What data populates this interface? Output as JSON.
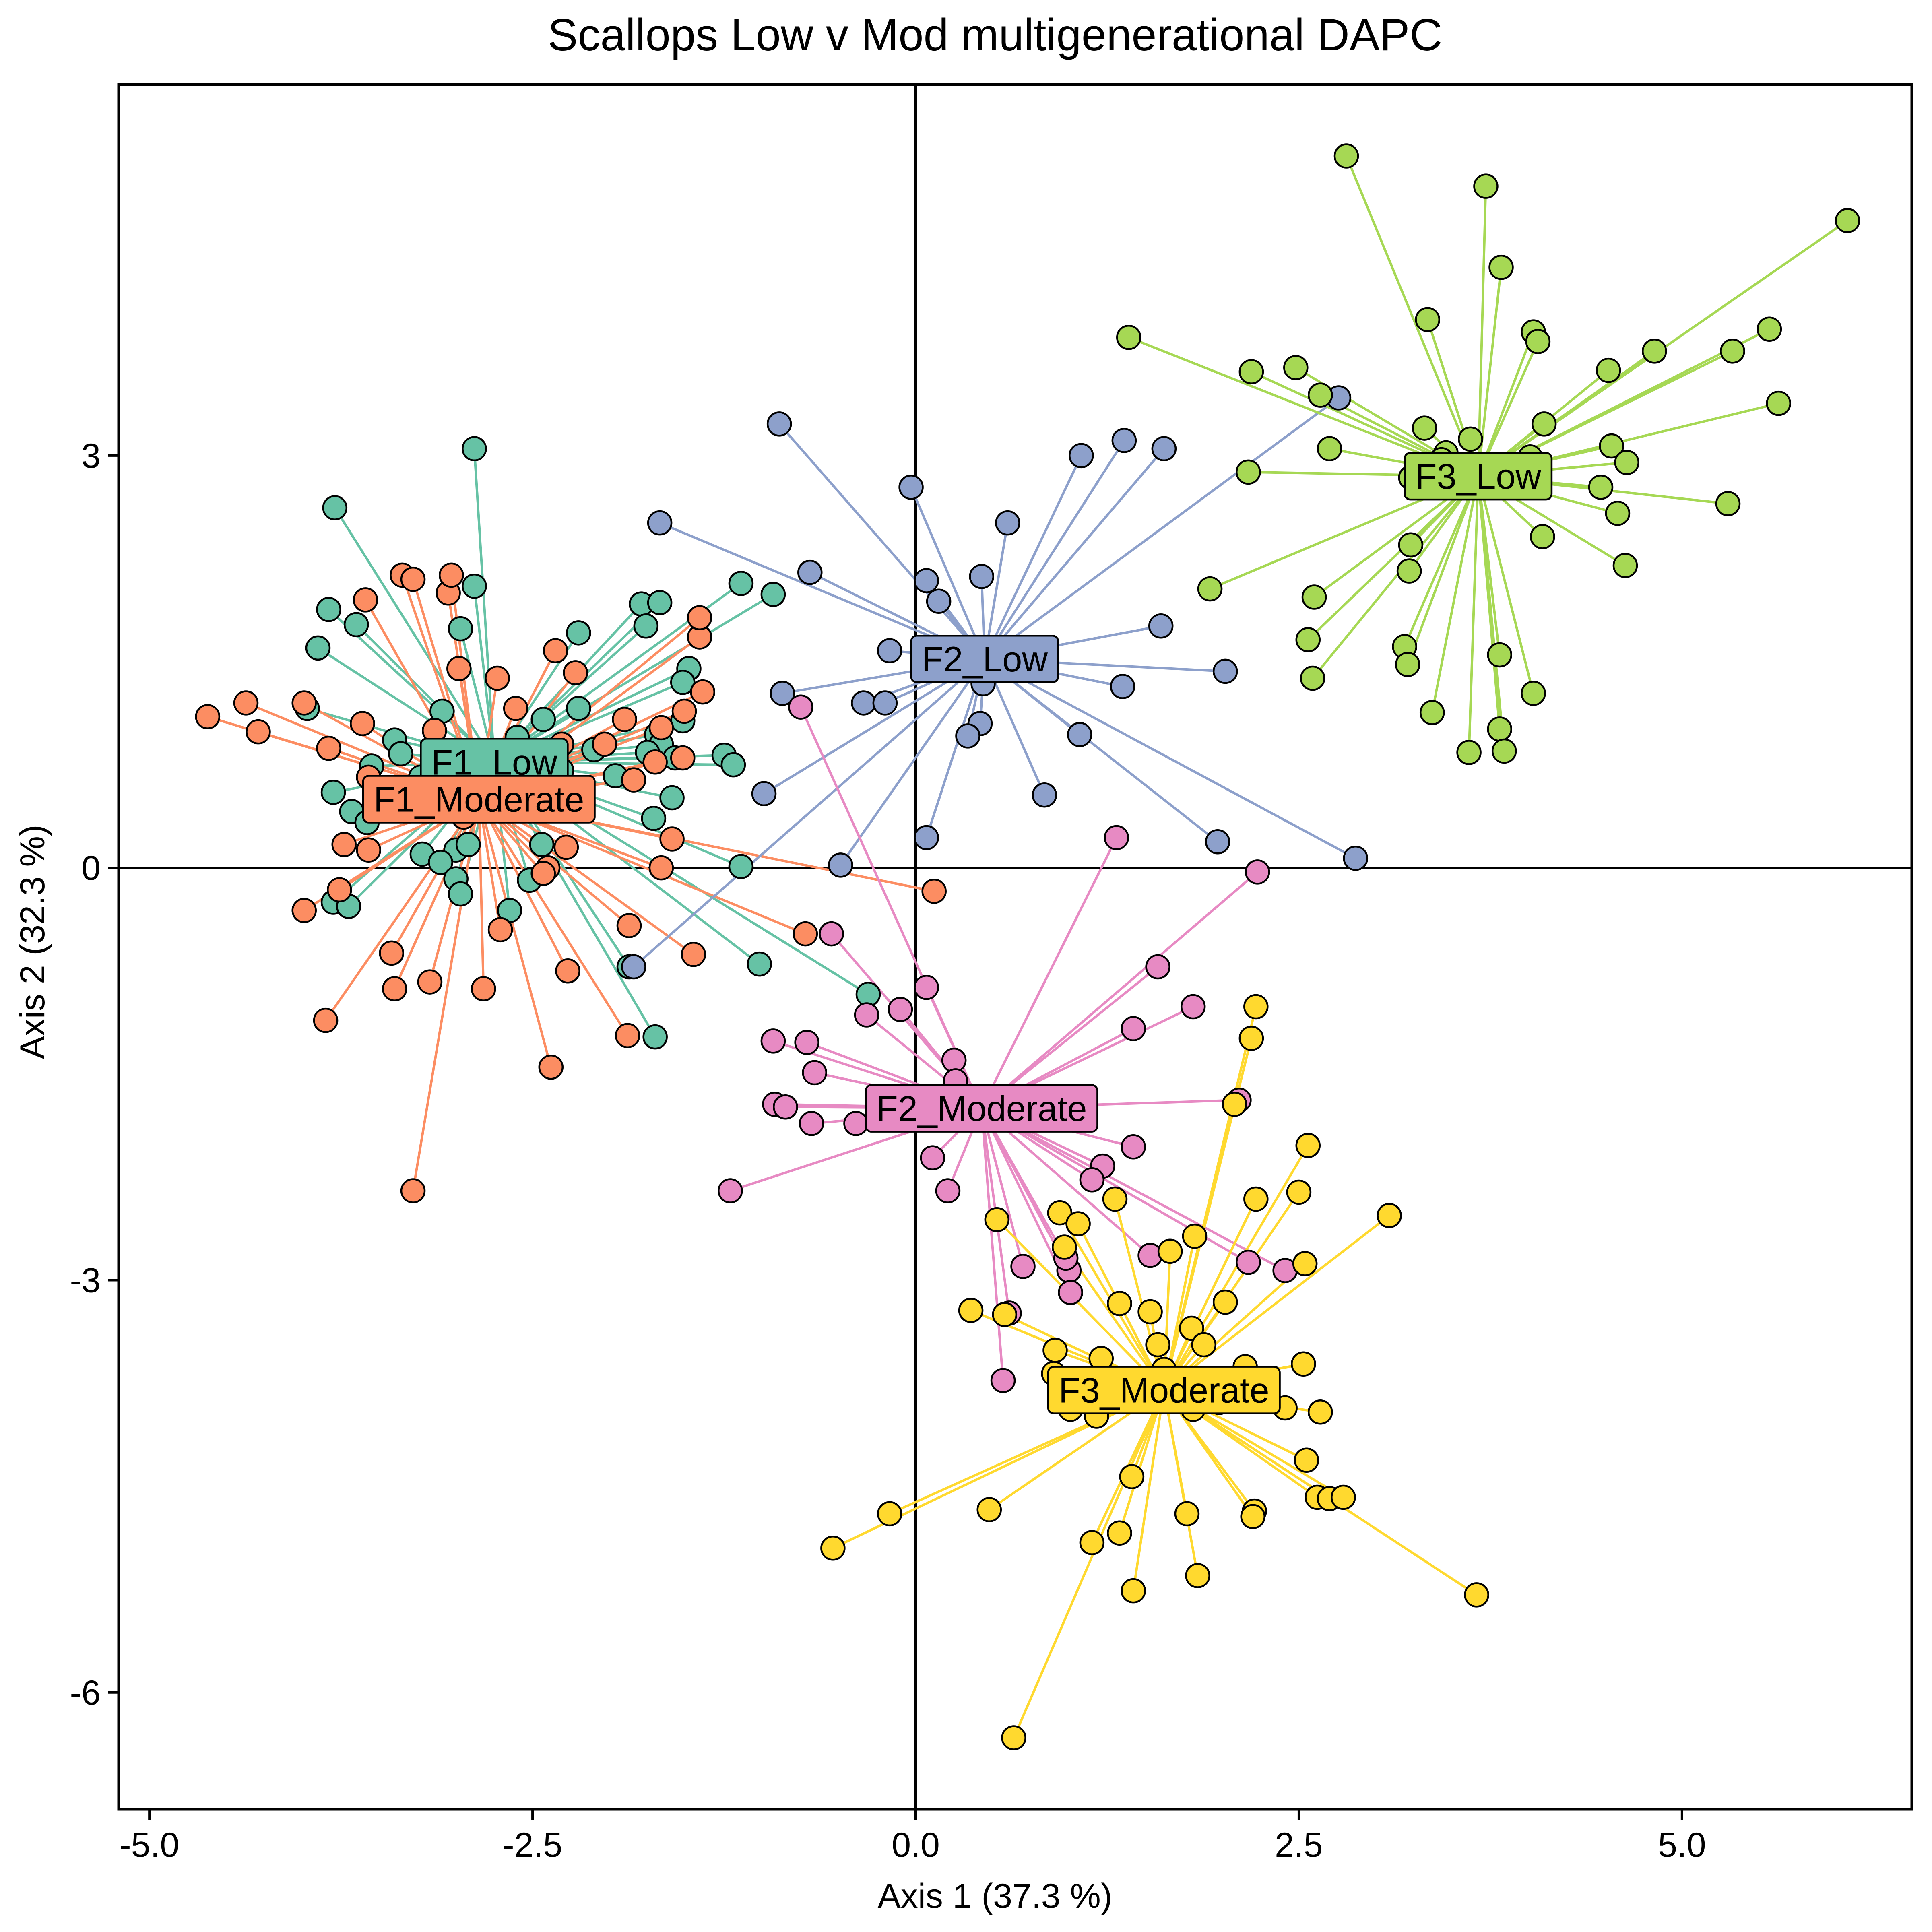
{
  "chart_data": {
    "type": "scatter",
    "title": "Scallops Low v Mod multigenerational DAPC",
    "xlabel": "Axis 1 (37.3 %)",
    "ylabel": "Axis 2 (32.3 %)",
    "xlim": [
      -5.2,
      6.5
    ],
    "ylim": [
      -6.85,
      5.7
    ],
    "x_ticks": [
      -5.0,
      -2.5,
      0.0,
      2.5,
      5.0
    ],
    "x_tick_labels": [
      "-5.0",
      "-2.5",
      "0.0",
      "2.5",
      "5.0"
    ],
    "y_ticks": [
      3,
      0,
      -3,
      -6
    ],
    "y_tick_labels": [
      "3",
      "0",
      "-3",
      "-6"
    ],
    "reference_lines": {
      "x": 0,
      "y": 0
    },
    "grid": false,
    "legend": "none (centroid labels)",
    "series": [
      {
        "name": "F1_Low",
        "color": "#66c2a5",
        "centroid": [
          -2.75,
          0.77
        ],
        "points": [
          [
            -2.88,
            3.05
          ],
          [
            -3.79,
            2.62
          ],
          [
            -3.83,
            1.88
          ],
          [
            -3.9,
            1.6
          ],
          [
            -3.65,
            1.77
          ],
          [
            -2.97,
            1.74
          ],
          [
            -2.88,
            2.05
          ],
          [
            -2.2,
            1.71
          ],
          [
            -1.79,
            1.92
          ],
          [
            -1.67,
            1.93
          ],
          [
            -1.76,
            1.76
          ],
          [
            -1.14,
            2.07
          ],
          [
            -0.93,
            1.99
          ],
          [
            -1.48,
            1.45
          ],
          [
            -1.52,
            1.35
          ],
          [
            -1.52,
            1.07
          ],
          [
            -1.69,
            0.97
          ],
          [
            -1.66,
            0.9
          ],
          [
            -1.75,
            0.84
          ],
          [
            -1.57,
            0.8
          ],
          [
            -1.25,
            0.82
          ],
          [
            -1.19,
            0.75
          ],
          [
            -1.14,
            0.01
          ],
          [
            -1.02,
            -0.7
          ],
          [
            -0.31,
            -0.92
          ],
          [
            -1.7,
            -1.23
          ],
          [
            -1.87,
            -0.72
          ],
          [
            -1.71,
            0.36
          ],
          [
            -1.59,
            0.51
          ],
          [
            -2.2,
            1.16
          ],
          [
            -2.43,
            1.08
          ],
          [
            -2.6,
            0.95
          ],
          [
            -3.09,
            1.14
          ],
          [
            -3.4,
            0.93
          ],
          [
            -3.36,
            0.83
          ],
          [
            -3.55,
            0.74
          ],
          [
            -3.23,
            0.66
          ],
          [
            -3.97,
            1.16
          ],
          [
            -3.8,
            0.55
          ],
          [
            -3.68,
            0.41
          ],
          [
            -3.58,
            0.33
          ],
          [
            -3.22,
            0.1
          ],
          [
            -3.0,
            0.13
          ],
          [
            -3.1,
            0.04
          ],
          [
            -3.0,
            -0.08
          ],
          [
            -2.92,
            0.17
          ],
          [
            -2.97,
            -0.19
          ],
          [
            -2.65,
            -0.31
          ],
          [
            -2.52,
            -0.09
          ],
          [
            -2.44,
            0.17
          ],
          [
            -3.8,
            -0.25
          ],
          [
            -3.7,
            -0.28
          ],
          [
            -1.96,
            0.67
          ],
          [
            -2.31,
            0.71
          ],
          [
            -2.1,
            0.86
          ]
        ]
      },
      {
        "name": "F1_Moderate",
        "color": "#fc8d62",
        "centroid": [
          -2.85,
          0.5
        ],
        "points": [
          [
            -4.62,
            1.1
          ],
          [
            -4.37,
            1.2
          ],
          [
            -4.29,
            0.99
          ],
          [
            -3.99,
            1.2
          ],
          [
            -3.61,
            1.05
          ],
          [
            -3.59,
            1.95
          ],
          [
            -3.35,
            2.13
          ],
          [
            -3.28,
            2.1
          ],
          [
            -3.14,
            1.0
          ],
          [
            -3.05,
            2.0
          ],
          [
            -3.03,
            2.13
          ],
          [
            -2.98,
            1.45
          ],
          [
            -2.73,
            1.38
          ],
          [
            -2.61,
            1.16
          ],
          [
            -2.35,
            1.58
          ],
          [
            -2.22,
            1.42
          ],
          [
            -2.03,
            0.9
          ],
          [
            -1.9,
            1.08
          ],
          [
            -1.66,
            1.02
          ],
          [
            -1.7,
            0.77
          ],
          [
            -1.52,
            0.8
          ],
          [
            -1.41,
            1.68
          ],
          [
            -1.41,
            1.82
          ],
          [
            -1.39,
            1.28
          ],
          [
            -1.51,
            1.14
          ],
          [
            -1.84,
            0.64
          ],
          [
            -1.59,
            0.21
          ],
          [
            -1.66,
            0.0
          ],
          [
            -1.45,
            -0.63
          ],
          [
            -1.87,
            -0.42
          ],
          [
            -1.88,
            -1.22
          ],
          [
            -2.27,
            -0.75
          ],
          [
            -2.38,
            -1.45
          ],
          [
            -2.28,
            0.15
          ],
          [
            -2.4,
            0.0
          ],
          [
            -2.43,
            -0.04
          ],
          [
            -2.71,
            -0.45
          ],
          [
            -2.82,
            -0.88
          ],
          [
            -3.17,
            -0.83
          ],
          [
            -3.4,
            -0.88
          ],
          [
            -3.42,
            -0.62
          ],
          [
            -3.85,
            -1.11
          ],
          [
            -3.76,
            -0.16
          ],
          [
            -3.99,
            -0.31
          ],
          [
            -3.73,
            0.17
          ],
          [
            -3.57,
            0.66
          ],
          [
            -3.57,
            0.13
          ],
          [
            -3.83,
            0.87
          ],
          [
            -3.28,
            -2.35
          ],
          [
            -0.72,
            -0.48
          ],
          [
            0.12,
            -0.17
          ],
          [
            -2.31,
            0.9
          ],
          [
            -2.66,
            0.53
          ],
          [
            -2.95,
            0.37
          ]
        ]
      },
      {
        "name": "F2_Low",
        "color": "#8da0cb",
        "centroid": [
          0.45,
          1.52
        ],
        "points": [
          [
            -0.89,
            3.23
          ],
          [
            -1.67,
            2.51
          ],
          [
            -0.69,
            2.15
          ],
          [
            -0.03,
            2.77
          ],
          [
            0.07,
            2.09
          ],
          [
            0.15,
            1.94
          ],
          [
            0.43,
            2.12
          ],
          [
            0.6,
            2.51
          ],
          [
            1.08,
            3.0
          ],
          [
            1.36,
            3.11
          ],
          [
            1.62,
            3.05
          ],
          [
            1.6,
            1.76
          ],
          [
            2.02,
            1.43
          ],
          [
            1.35,
            1.32
          ],
          [
            1.07,
            0.97
          ],
          [
            0.84,
            0.53
          ],
          [
            1.97,
            0.19
          ],
          [
            2.87,
            0.07
          ],
          [
            -0.99,
            0.54
          ],
          [
            -0.87,
            1.27
          ],
          [
            -0.34,
            1.2
          ],
          [
            -0.2,
            1.2
          ],
          [
            -0.17,
            1.58
          ],
          [
            0.42,
            1.05
          ],
          [
            0.34,
            0.96
          ],
          [
            0.44,
            1.34
          ],
          [
            0.07,
            0.22
          ],
          [
            -0.49,
            0.02
          ],
          [
            -1.84,
            -0.72
          ],
          [
            2.76,
            3.42
          ]
        ]
      },
      {
        "name": "F2_Moderate",
        "color": "#e78ac3",
        "centroid": [
          0.43,
          -1.75
        ],
        "points": [
          [
            -0.75,
            1.17
          ],
          [
            -0.55,
            -0.48
          ],
          [
            0.07,
            -0.87
          ],
          [
            -0.1,
            -1.03
          ],
          [
            -0.32,
            -1.07
          ],
          [
            -0.93,
            -1.26
          ],
          [
            -0.71,
            -1.27
          ],
          [
            -0.66,
            -1.49
          ],
          [
            -0.92,
            -1.72
          ],
          [
            -0.85,
            -1.74
          ],
          [
            -0.68,
            -1.86
          ],
          [
            -0.39,
            -1.86
          ],
          [
            0.25,
            -1.4
          ],
          [
            0.26,
            -1.55
          ],
          [
            0.11,
            -2.11
          ],
          [
            0.21,
            -2.35
          ],
          [
            -1.21,
            -2.35
          ],
          [
            1.31,
            0.22
          ],
          [
            2.23,
            -0.03
          ],
          [
            1.58,
            -0.72
          ],
          [
            1.42,
            -1.17
          ],
          [
            1.81,
            -1.01
          ],
          [
            2.11,
            -1.69
          ],
          [
            1.42,
            -2.03
          ],
          [
            1.22,
            -2.17
          ],
          [
            1.15,
            -2.27
          ],
          [
            1.53,
            -2.82
          ],
          [
            2.17,
            -2.87
          ],
          [
            2.41,
            -2.93
          ],
          [
            1.0,
            -2.93
          ],
          [
            0.98,
            -2.84
          ],
          [
            0.7,
            -2.9
          ],
          [
            1.01,
            -3.09
          ],
          [
            0.61,
            -3.24
          ],
          [
            0.57,
            -3.73
          ]
        ]
      },
      {
        "name": "F3_Low",
        "color": "#a6d854",
        "centroid": [
          3.67,
          2.85
        ],
        "points": [
          [
            2.81,
            5.18
          ],
          [
            3.72,
            4.96
          ],
          [
            3.82,
            4.37
          ],
          [
            6.08,
            4.71
          ],
          [
            1.39,
            3.86
          ],
          [
            2.19,
            3.61
          ],
          [
            2.48,
            3.64
          ],
          [
            2.64,
            3.44
          ],
          [
            3.34,
            3.99
          ],
          [
            4.03,
            3.9
          ],
          [
            4.06,
            3.83
          ],
          [
            4.52,
            3.62
          ],
          [
            4.82,
            3.76
          ],
          [
            5.33,
            3.76
          ],
          [
            5.57,
            3.92
          ],
          [
            5.63,
            3.38
          ],
          [
            4.1,
            3.23
          ],
          [
            3.62,
            3.12
          ],
          [
            3.46,
            3.02
          ],
          [
            3.43,
            2.97
          ],
          [
            3.32,
            3.2
          ],
          [
            4.01,
            2.99
          ],
          [
            4.54,
            3.07
          ],
          [
            4.64,
            2.95
          ],
          [
            4.47,
            2.77
          ],
          [
            4.58,
            2.58
          ],
          [
            5.3,
            2.65
          ],
          [
            4.09,
            2.41
          ],
          [
            4.63,
            2.2
          ],
          [
            2.7,
            3.05
          ],
          [
            2.17,
            2.88
          ],
          [
            3.23,
            2.84
          ],
          [
            3.3,
            2.84
          ],
          [
            3.23,
            2.35
          ],
          [
            3.22,
            2.16
          ],
          [
            2.6,
            1.97
          ],
          [
            1.92,
            2.03
          ],
          [
            2.56,
            1.66
          ],
          [
            2.59,
            1.38
          ],
          [
            3.19,
            1.61
          ],
          [
            3.21,
            1.48
          ],
          [
            3.81,
            1.55
          ],
          [
            3.37,
            1.13
          ],
          [
            4.03,
            1.27
          ],
          [
            3.81,
            1.01
          ],
          [
            3.61,
            0.84
          ],
          [
            3.84,
            0.85
          ],
          [
            3.67,
            2.85
          ]
        ]
      },
      {
        "name": "F3_Moderate",
        "color": "#ffd92f",
        "centroid": [
          1.62,
          -3.8
        ],
        "points": [
          [
            2.22,
            -1.01
          ],
          [
            2.19,
            -1.24
          ],
          [
            2.08,
            -1.72
          ],
          [
            2.56,
            -2.02
          ],
          [
            2.5,
            -2.36
          ],
          [
            2.22,
            -2.41
          ],
          [
            3.09,
            -2.53
          ],
          [
            1.82,
            -2.68
          ],
          [
            2.54,
            -2.88
          ],
          [
            2.02,
            -3.16
          ],
          [
            1.8,
            -3.35
          ],
          [
            1.88,
            -3.47
          ],
          [
            1.58,
            -3.47
          ],
          [
            1.62,
            -3.65
          ],
          [
            2.53,
            -3.61
          ],
          [
            2.64,
            -3.96
          ],
          [
            1.98,
            -3.89
          ],
          [
            2.15,
            -3.63
          ],
          [
            1.81,
            -3.94
          ],
          [
            2.41,
            -3.93
          ],
          [
            2.55,
            -4.31
          ],
          [
            2.62,
            -4.58
          ],
          [
            2.7,
            -4.59
          ],
          [
            2.79,
            -4.58
          ],
          [
            3.66,
            -5.29
          ],
          [
            2.21,
            -4.68
          ],
          [
            2.2,
            -4.72
          ],
          [
            1.77,
            -4.7
          ],
          [
            1.84,
            -5.15
          ],
          [
            1.42,
            -5.26
          ],
          [
            1.41,
            -4.43
          ],
          [
            1.33,
            -4.84
          ],
          [
            1.15,
            -4.91
          ],
          [
            0.48,
            -4.67
          ],
          [
            -0.17,
            -4.7
          ],
          [
            -0.54,
            -4.95
          ],
          [
            0.64,
            -6.33
          ],
          [
            1.01,
            -3.94
          ],
          [
            1.18,
            -3.99
          ],
          [
            1.21,
            -3.57
          ],
          [
            0.91,
            -3.51
          ],
          [
            0.9,
            -3.68
          ],
          [
            0.58,
            -3.25
          ],
          [
            0.36,
            -3.22
          ],
          [
            0.53,
            -2.56
          ],
          [
            0.94,
            -2.51
          ],
          [
            1.06,
            -2.59
          ],
          [
            1.3,
            -2.41
          ],
          [
            1.33,
            -3.17
          ],
          [
            0.97,
            -2.76
          ],
          [
            1.66,
            -2.79
          ],
          [
            1.53,
            -3.23
          ]
        ]
      }
    ]
  }
}
